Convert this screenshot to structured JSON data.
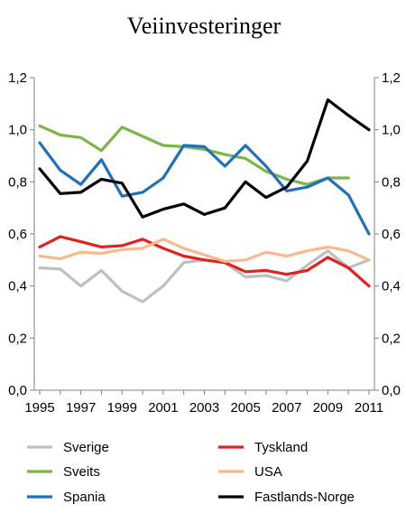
{
  "chart_data": {
    "type": "line",
    "title": "Veiinvesteringer",
    "xlabel": "",
    "ylabel": "",
    "x": [
      1995,
      1996,
      1997,
      1998,
      1999,
      2000,
      2001,
      2002,
      2003,
      2004,
      2005,
      2006,
      2007,
      2008,
      2009,
      2010,
      2011
    ],
    "x_tick_labels": [
      "1995",
      "1997",
      "1999",
      "2001",
      "2003",
      "2005",
      "2007",
      "2009",
      "2011"
    ],
    "ylim": [
      0,
      1.2
    ],
    "y_tick_labels_left": [
      "0,0",
      "0,2",
      "0,4",
      "0,6",
      "0,8",
      "1,0",
      "1,2"
    ],
    "y_tick_labels_right": [
      "0,0",
      "0,2",
      "0,4",
      "0,6",
      "0,8",
      "1,0",
      "1,2"
    ],
    "grid": false,
    "legend_position": "bottom",
    "series": [
      {
        "name": "Sverige",
        "color": "#bfbfbf",
        "values": [
          0.47,
          0.465,
          0.4,
          0.46,
          0.38,
          0.34,
          0.4,
          0.49,
          0.5,
          0.49,
          0.435,
          0.44,
          0.42,
          0.48,
          0.535,
          0.47,
          0.5
        ]
      },
      {
        "name": "Tyskland",
        "color": "#e3221f",
        "values": [
          0.55,
          0.59,
          0.57,
          0.55,
          0.555,
          0.58,
          0.545,
          0.515,
          0.5,
          0.49,
          0.455,
          0.46,
          0.445,
          0.46,
          0.51,
          0.47,
          0.4
        ]
      },
      {
        "name": "Sveits",
        "color": "#7ab648",
        "values": [
          1.015,
          0.98,
          0.97,
          0.92,
          1.01,
          0.975,
          0.94,
          0.935,
          0.925,
          0.905,
          0.89,
          0.84,
          0.81,
          0.79,
          0.815,
          0.815,
          null
        ]
      },
      {
        "name": "USA",
        "color": "#f9b98e",
        "values": [
          0.515,
          0.505,
          0.53,
          0.525,
          0.54,
          0.545,
          0.58,
          0.545,
          0.52,
          0.495,
          0.5,
          0.53,
          0.515,
          0.535,
          0.55,
          0.535,
          0.5
        ]
      },
      {
        "name": "Spania",
        "color": "#1f6fba",
        "values": [
          0.95,
          0.845,
          0.79,
          0.885,
          0.745,
          0.76,
          0.815,
          0.94,
          0.935,
          0.86,
          0.94,
          0.86,
          0.765,
          0.78,
          0.815,
          0.75,
          0.6
        ]
      },
      {
        "name": "Fastlands-Norge",
        "color": "#000000",
        "values": [
          0.85,
          0.755,
          0.76,
          0.81,
          0.795,
          0.665,
          0.695,
          0.715,
          0.675,
          0.7,
          0.8,
          0.74,
          0.78,
          0.88,
          1.115,
          1.055,
          1.0
        ]
      }
    ],
    "legend_rows": [
      [
        "Sverige",
        "Tyskland"
      ],
      [
        "Sveits",
        "USA"
      ],
      [
        "Spania",
        "Fastlands-Norge"
      ]
    ]
  }
}
